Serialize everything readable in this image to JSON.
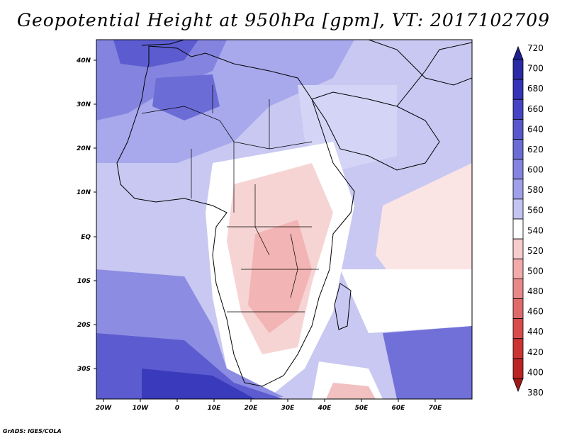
{
  "title": "Geopotential Height at 950hPa [gpm], VT: 2017102709",
  "credit": "GrADS: IGES/COLA",
  "map": {
    "lon_labels": [
      "20W",
      "10W",
      "0",
      "10E",
      "20E",
      "30E",
      "40E",
      "50E",
      "60E",
      "70E"
    ],
    "lat_labels": [
      "40N",
      "30N",
      "20N",
      "10N",
      "EQ",
      "10S",
      "20S",
      "30S"
    ]
  },
  "colorbar": {
    "levels": [
      "720",
      "700",
      "680",
      "660",
      "640",
      "620",
      "600",
      "580",
      "560",
      "540",
      "520",
      "500",
      "480",
      "460",
      "440",
      "420",
      "400",
      "380"
    ],
    "colors": [
      "#1f1f8f",
      "#2a2aa6",
      "#3434b8",
      "#4444c4",
      "#5858cc",
      "#6c6cd6",
      "#8484e0",
      "#a0a0ea",
      "#c4c4f2",
      "#ffffff",
      "#f7cccc",
      "#f2aaaa",
      "#e88888",
      "#e06a6a",
      "#d84c4c",
      "#cc3434",
      "#bc2424",
      "#a01818"
    ]
  },
  "colors": {
    "ocean_deep_blue": "#4a4ac8",
    "land_outline": "#000000"
  }
}
